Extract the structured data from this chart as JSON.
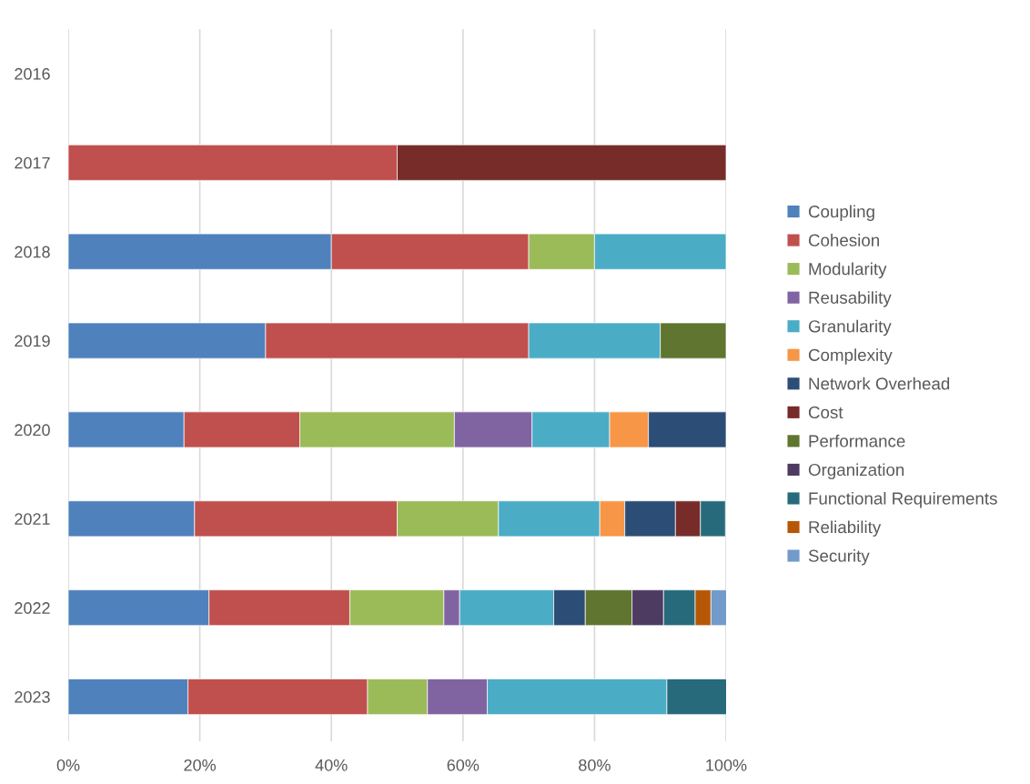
{
  "chart_data": {
    "type": "bar",
    "orientation": "horizontal",
    "stacked": true,
    "categories": [
      "2016",
      "2017",
      "2018",
      "2019",
      "2020",
      "2021",
      "2022",
      "2023"
    ],
    "series": [
      {
        "name": "Coupling",
        "color": "#4f81bd",
        "values": [
          null,
          null,
          40,
          30,
          17.6,
          19.2,
          21.4,
          18.2
        ]
      },
      {
        "name": "Cohesion",
        "color": "#c0504d",
        "values": [
          null,
          50,
          30,
          40,
          17.6,
          30.8,
          21.4,
          27.3
        ]
      },
      {
        "name": "Modularity",
        "color": "#9bbb59",
        "values": [
          null,
          null,
          10,
          null,
          23.5,
          15.4,
          14.3,
          9.1
        ]
      },
      {
        "name": "Reusability",
        "color": "#8064a2",
        "values": [
          null,
          null,
          null,
          null,
          11.8,
          null,
          2.4,
          9.1
        ]
      },
      {
        "name": "Granularity",
        "color": "#4bacc6",
        "values": [
          null,
          null,
          20,
          20,
          11.8,
          15.4,
          14.3,
          27.3
        ]
      },
      {
        "name": "Complexity",
        "color": "#f79646",
        "values": [
          null,
          null,
          null,
          null,
          5.9,
          3.8,
          null,
          null
        ]
      },
      {
        "name": "Network Overhead",
        "color": "#2c4d75",
        "values": [
          null,
          null,
          null,
          null,
          11.8,
          7.7,
          4.8,
          null
        ]
      },
      {
        "name": "Cost",
        "color": "#772c2a",
        "values": [
          null,
          50,
          null,
          null,
          null,
          3.8,
          null,
          null
        ]
      },
      {
        "name": "Performance",
        "color": "#5f7530",
        "values": [
          null,
          null,
          null,
          10,
          null,
          null,
          7.1,
          null
        ]
      },
      {
        "name": "Organization",
        "color": "#4d3b62",
        "values": [
          null,
          null,
          null,
          null,
          null,
          null,
          4.8,
          null
        ]
      },
      {
        "name": "Functional Requirements",
        "color": "#276a7c",
        "values": [
          null,
          null,
          null,
          null,
          null,
          3.8,
          4.8,
          9.1
        ]
      },
      {
        "name": "Reliability",
        "color": "#b65708",
        "values": [
          null,
          null,
          null,
          null,
          null,
          null,
          2.4,
          null
        ]
      },
      {
        "name": "Security",
        "color": "#729aca",
        "values": [
          null,
          null,
          null,
          null,
          null,
          null,
          2.4,
          null
        ]
      }
    ],
    "xlim": [
      0,
      100
    ],
    "xticks": [
      {
        "value": 0,
        "label": "0%"
      },
      {
        "value": 20,
        "label": "20%"
      },
      {
        "value": 40,
        "label": "40%"
      },
      {
        "value": 60,
        "label": "60%"
      },
      {
        "value": 80,
        "label": "80%"
      },
      {
        "value": 100,
        "label": "100%"
      }
    ],
    "grid": "x",
    "legend": "right"
  }
}
